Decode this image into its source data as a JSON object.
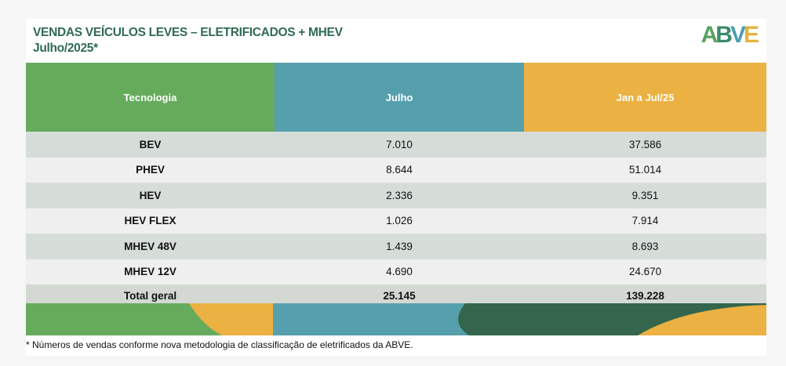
{
  "header": {
    "title_line1": "VENDAS VEÍCULOS LEVES – ELETRIFICADOS + MHEV",
    "title_line2": "Julho/2025*",
    "logo": "ABVE"
  },
  "table": {
    "columns": [
      "Tecnologia",
      "Julho",
      "Jan a Jul/25"
    ],
    "rows": [
      {
        "tech": "BEV",
        "month": "7.010",
        "ytd": "37.586"
      },
      {
        "tech": "PHEV",
        "month": "8.644",
        "ytd": "51.014"
      },
      {
        "tech": "HEV",
        "month": "2.336",
        "ytd": "9.351"
      },
      {
        "tech": "HEV FLEX",
        "month": "1.026",
        "ytd": "7.914"
      },
      {
        "tech": "MHEV 48V",
        "month": "1.439",
        "ytd": "8.693"
      },
      {
        "tech": "MHEV 12V",
        "month": "4.690",
        "ytd": "24.670"
      }
    ],
    "total": {
      "tech": "Total geral",
      "month": "25.145",
      "ytd": "139.228"
    }
  },
  "footnote": "* Números de vendas conforme nova metodologia de classificação de eletrificados da ABVE.",
  "colors": {
    "green": "#66ab5c",
    "teal": "#56a0ad",
    "yellow": "#ebb142",
    "dark_green": "#33664c"
  }
}
